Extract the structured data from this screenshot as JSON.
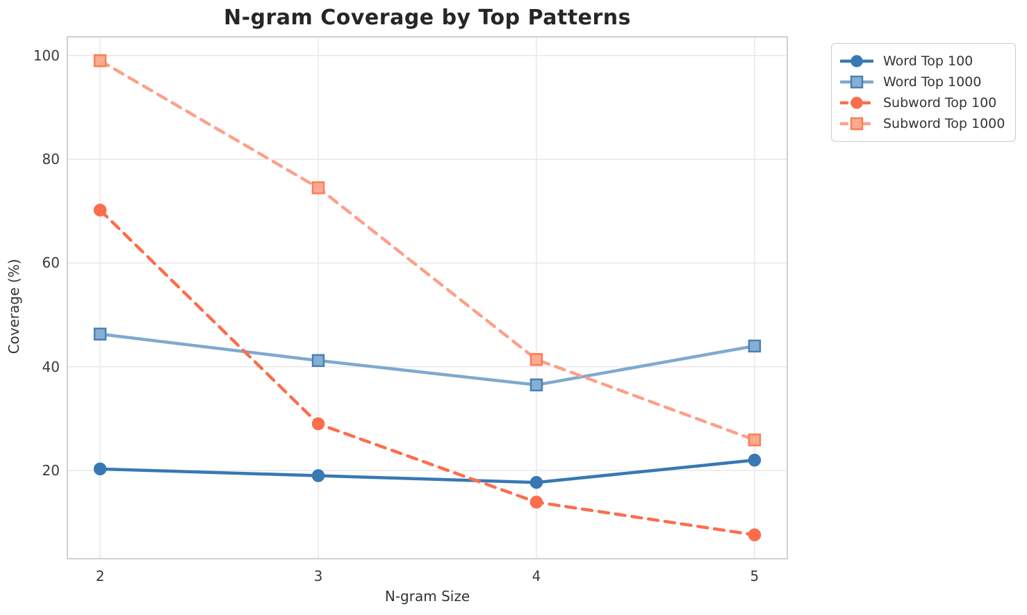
{
  "title": "N-gram Coverage by Top Patterns",
  "axes": {
    "xlabel": "N-gram Size",
    "ylabel": "Coverage (%)"
  },
  "chart_data": {
    "type": "line",
    "title": "N-gram Coverage by Top Patterns",
    "xlabel": "N-gram Size",
    "ylabel": "Coverage (%)",
    "x": [
      2,
      3,
      4,
      5
    ],
    "x_tick_labels": [
      "2",
      "3",
      "4",
      "5"
    ],
    "y_ticks": [
      20,
      40,
      60,
      80,
      100
    ],
    "y_tick_labels": [
      "20",
      "40",
      "60",
      "80",
      "100"
    ],
    "xlim": [
      1.85,
      5.15
    ],
    "ylim": [
      3.0,
      103.6
    ],
    "grid": true,
    "legend_position": "outside-upper-right",
    "series": [
      {
        "name": "Word Top 100",
        "values": [
          20.3,
          19.0,
          17.7,
          22.0
        ],
        "color": "#3878b4",
        "marker": "circle",
        "marker_fill": "#3878b4",
        "marker_edge": "#3878b4",
        "line_style": "solid"
      },
      {
        "name": "Word Top 1000",
        "values": [
          46.3,
          41.2,
          36.5,
          44.0
        ],
        "color": "#7fa9cf",
        "marker": "square",
        "marker_fill": "#86afd3",
        "marker_edge": "#4a80b5",
        "line_style": "solid"
      },
      {
        "name": "Subword Top 100",
        "values": [
          70.2,
          29.0,
          13.9,
          7.6
        ],
        "color": "#fc6d4b",
        "marker": "circle",
        "marker_fill": "#fc6d4b",
        "marker_edge": "#fc6d4b",
        "line_style": "dashed"
      },
      {
        "name": "Subword Top 1000",
        "values": [
          99.0,
          74.5,
          41.4,
          25.9
        ],
        "color": "#fda089",
        "marker": "square",
        "marker_fill": "#fcaa90",
        "marker_edge": "#fb7d57",
        "line_style": "dashed"
      }
    ],
    "style": {
      "grid_color": "#e8e8e8",
      "spine_color": "#d0d0d0",
      "background": "#ffffff"
    }
  }
}
